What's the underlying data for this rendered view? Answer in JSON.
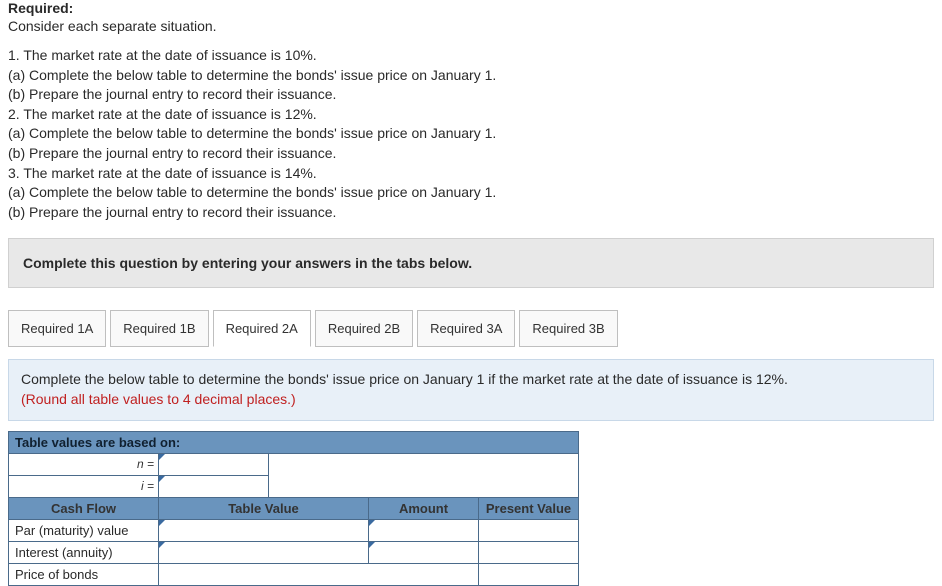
{
  "header": {
    "required_label": "Required:",
    "consider_text": "Consider each separate situation."
  },
  "prompts": [
    "1. The market rate at the date of issuance is 10%.",
    "(a) Complete the below table to determine the bonds' issue price on January 1.",
    "(b) Prepare the journal entry to record their issuance.",
    "2. The market rate at the date of issuance is 12%.",
    "(a) Complete the below table to determine the bonds' issue price on January 1.",
    "(b) Prepare the journal entry to record their issuance.",
    "3. The market rate at the date of issuance is 14%.",
    "(a) Complete the below table to determine the bonds' issue price on January 1.",
    "(b) Prepare the journal entry to record their issuance."
  ],
  "tabs_instruction": "Complete this question by entering your answers in the tabs below.",
  "tabs": [
    {
      "label": "Required 1A",
      "active": false
    },
    {
      "label": "Required 1B",
      "active": false
    },
    {
      "label": "Required 2A",
      "active": true
    },
    {
      "label": "Required 2B",
      "active": false
    },
    {
      "label": "Required 3A",
      "active": false
    },
    {
      "label": "Required 3B",
      "active": false
    }
  ],
  "sub_instruction": {
    "main": "Complete the below table to determine the bonds' issue price on January 1 if the market rate at the date of issuance is 12%.",
    "note": "(Round all table values to 4 decimal places.)"
  },
  "table": {
    "basis_header": "Table values are based on:",
    "n_label": "n =",
    "i_label": "i =",
    "col_headers": {
      "cash_flow": "Cash Flow",
      "table_value": "Table Value",
      "amount": "Amount",
      "present_value": "Present Value"
    },
    "rows": {
      "par": "Par (maturity) value",
      "interest": "Interest (annuity)",
      "price": "Price of bonds"
    }
  }
}
